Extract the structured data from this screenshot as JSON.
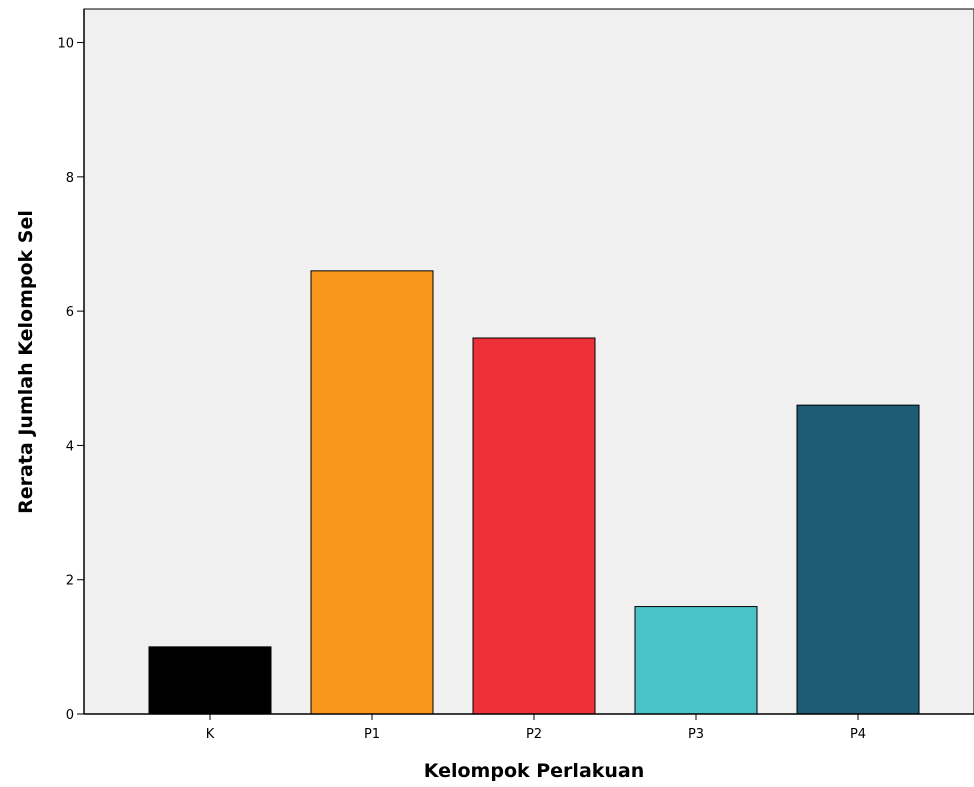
{
  "chart_data": {
    "type": "bar",
    "title": "",
    "xlabel": "Kelompok Perlakuan",
    "ylabel": "Rerata Jumlah Kelompok Sel",
    "categories": [
      "K",
      "P1",
      "P2",
      "P3",
      "P4"
    ],
    "values": [
      1.0,
      6.6,
      5.6,
      1.6,
      4.6
    ],
    "bar_colors": [
      "#000000",
      "#F7981D",
      "#EE3039",
      "#4AC3C6",
      "#1D5C73"
    ],
    "ylim": [
      0,
      10.5
    ],
    "yticks": [
      0,
      2,
      4,
      6,
      8,
      10
    ],
    "plot_background": "#F0F0F0",
    "grid": false,
    "legend": "none"
  }
}
